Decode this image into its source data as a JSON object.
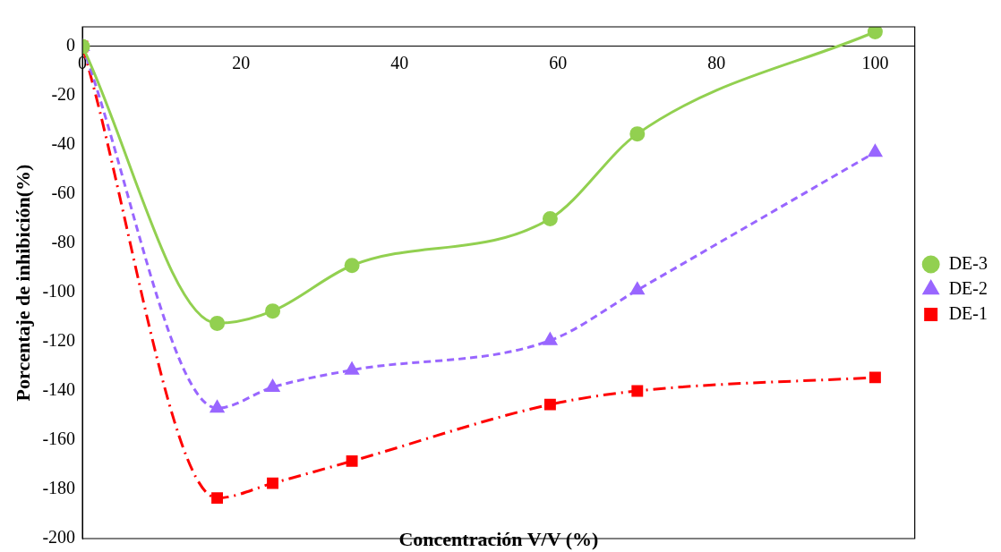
{
  "chart_data": {
    "type": "line",
    "xlabel": "Concentración V/V (%)",
    "ylabel": "Porcentaje de inhibición(%)",
    "x": [
      0,
      17,
      24,
      34,
      59,
      70,
      100
    ],
    "xlim": [
      0,
      105
    ],
    "xticks": [
      0,
      20,
      40,
      60,
      80,
      100
    ],
    "ylim": [
      -200,
      8
    ],
    "yticks": [
      -200,
      -180,
      -160,
      -140,
      -120,
      -100,
      -80,
      -60,
      -40,
      -20,
      0
    ],
    "grid": false,
    "legend": "right",
    "series": [
      {
        "name": "DE-3",
        "color": "#92d050",
        "marker": "circle",
        "line_style": "solid",
        "values": [
          0,
          -112.5,
          -107.5,
          -89,
          -70,
          -35.5,
          6
        ]
      },
      {
        "name": "DE-2",
        "color": "#9966ff",
        "marker": "triangle",
        "line_style": "dashed",
        "values": [
          0,
          -147,
          -138.5,
          -131.5,
          -119.5,
          -99,
          -43
        ]
      },
      {
        "name": "DE-1",
        "color": "#ff0000",
        "marker": "square",
        "line_style": "dashdot",
        "values": [
          0,
          -183.5,
          -177.5,
          -168.5,
          -145.5,
          -140,
          -134.5
        ]
      }
    ]
  }
}
